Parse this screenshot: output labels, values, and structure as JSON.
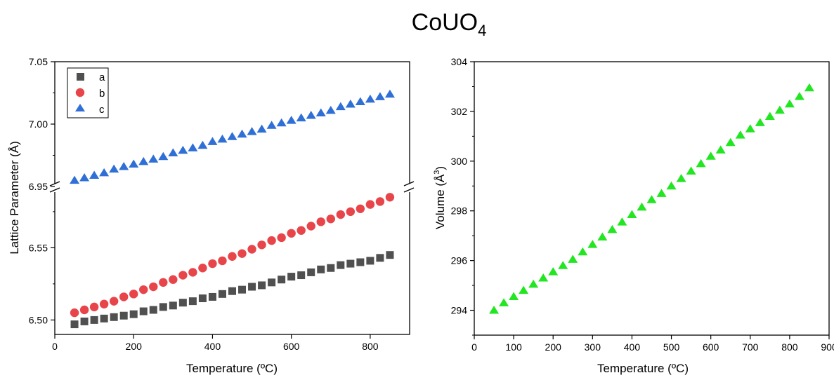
{
  "figure": {
    "title_main": "CoUO",
    "title_sub": "4"
  },
  "chart_data": [
    {
      "type": "scatter",
      "xlabel": "Temperature (ºC)",
      "ylabel": "Lattice Parameter (Å)",
      "xlim": [
        0,
        900
      ],
      "xticks": [
        0,
        200,
        400,
        600,
        800
      ],
      "y_axis_break": {
        "lower_range": [
          6.49,
          6.59
        ],
        "upper_range": [
          6.95,
          7.05
        ]
      },
      "yticks": [
        6.5,
        6.55,
        6.95,
        7.0,
        7.05
      ],
      "ytick_labels": [
        "6.50",
        "6.55",
        "6.95",
        "7.00",
        "7.05"
      ],
      "legend_position": "top-left",
      "x": [
        50,
        75,
        100,
        125,
        150,
        175,
        200,
        225,
        250,
        275,
        300,
        325,
        350,
        375,
        400,
        425,
        450,
        475,
        500,
        525,
        550,
        575,
        600,
        625,
        650,
        675,
        700,
        725,
        750,
        775,
        800,
        825,
        850
      ],
      "series": [
        {
          "name": "a",
          "marker": "square",
          "color": "#505050",
          "values": [
            6.497,
            6.499,
            6.5,
            6.501,
            6.502,
            6.503,
            6.504,
            6.506,
            6.507,
            6.509,
            6.51,
            6.512,
            6.513,
            6.515,
            6.516,
            6.518,
            6.52,
            6.521,
            6.523,
            6.524,
            6.526,
            6.528,
            6.53,
            6.531,
            6.533,
            6.535,
            6.536,
            6.538,
            6.539,
            6.54,
            6.541,
            6.543,
            6.545
          ]
        },
        {
          "name": "b",
          "marker": "circle",
          "color": "#e8454a",
          "values": [
            6.505,
            6.507,
            6.509,
            6.511,
            6.513,
            6.516,
            6.518,
            6.521,
            6.523,
            6.526,
            6.528,
            6.531,
            6.533,
            6.536,
            6.539,
            6.541,
            6.544,
            6.546,
            6.549,
            6.552,
            6.555,
            6.557,
            6.56,
            6.562,
            6.565,
            6.568,
            6.57,
            6.573,
            6.575,
            6.577,
            6.58,
            6.582,
            6.585
          ]
        },
        {
          "name": "c",
          "marker": "triangle",
          "color": "#2f6fd6",
          "values": [
            6.955,
            6.957,
            6.959,
            6.961,
            6.964,
            6.966,
            6.968,
            6.97,
            6.972,
            6.974,
            6.977,
            6.979,
            6.981,
            6.983,
            6.986,
            6.988,
            6.99,
            6.992,
            6.994,
            6.996,
            6.999,
            7.001,
            7.003,
            7.005,
            7.007,
            7.009,
            7.011,
            7.014,
            7.016,
            7.018,
            7.02,
            7.022,
            7.024
          ]
        }
      ]
    },
    {
      "type": "scatter",
      "xlabel": "Temperature (ºC)",
      "ylabel_main": "Volume (Å",
      "ylabel_sup": "3",
      "ylabel_end": ")",
      "xlim": [
        0,
        900
      ],
      "ylim": [
        293,
        304
      ],
      "xticks": [
        0,
        100,
        200,
        300,
        400,
        500,
        600,
        700,
        800,
        900
      ],
      "yticks": [
        294,
        296,
        298,
        300,
        302,
        304
      ],
      "x": [
        50,
        75,
        100,
        125,
        150,
        175,
        200,
        225,
        250,
        275,
        300,
        325,
        350,
        375,
        400,
        425,
        450,
        475,
        500,
        525,
        550,
        575,
        600,
        625,
        650,
        675,
        700,
        725,
        750,
        775,
        800,
        825,
        850
      ],
      "series": [
        {
          "marker": "triangle",
          "color": "#22e622",
          "values": [
            294.0,
            294.3,
            294.55,
            294.8,
            295.05,
            295.3,
            295.55,
            295.8,
            296.05,
            296.35,
            296.65,
            296.95,
            297.25,
            297.55,
            297.85,
            298.15,
            298.45,
            298.7,
            299.0,
            299.3,
            299.6,
            299.9,
            300.2,
            300.45,
            300.75,
            301.05,
            301.3,
            301.55,
            301.8,
            302.05,
            302.3,
            302.6,
            302.95
          ]
        }
      ]
    }
  ]
}
